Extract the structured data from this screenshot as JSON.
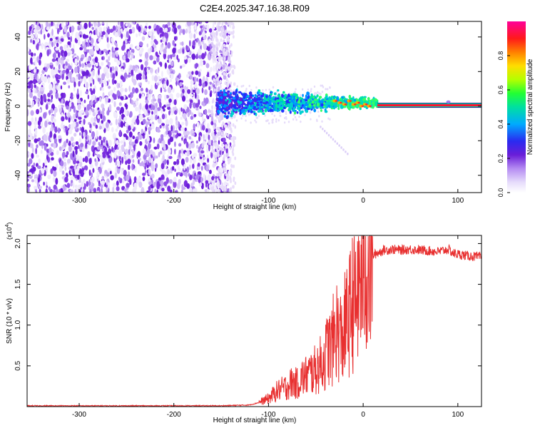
{
  "page_title": "C2E4.2025.347.16.38.R09",
  "colors": {
    "axis": "#000000",
    "snr_line": "#e83030",
    "background": "#ffffff",
    "carrier": "#f00000"
  },
  "chart_data": [
    {
      "id": "spectrogram",
      "type": "heatmap",
      "title": "C2E4.2025.347.16.38.R09",
      "xlabel": "Height of straight line (km)",
      "ylabel": "Frequency (Hz)",
      "xlim": [
        -355,
        125
      ],
      "ylim": [
        -50,
        49
      ],
      "xticks": [
        -300,
        -200,
        -100,
        0,
        100
      ],
      "xtick_labels": [
        "-300",
        "-200",
        "-100",
        "0",
        "100"
      ],
      "yticks": [
        -40,
        -20,
        0,
        20,
        40
      ],
      "ytick_labels": [
        "-40",
        "-20",
        "0",
        "20",
        "40"
      ],
      "grid": false,
      "regions": [
        {
          "name": "noise",
          "x_range": [
            -355,
            -140
          ],
          "description_level": 0.2
        },
        {
          "name": "signal-scatter",
          "x_range": [
            -155,
            15
          ],
          "center_freq": 2,
          "spread_freq": 6
        },
        {
          "name": "carrier-line",
          "x_range": [
            15,
            125
          ],
          "center_freq": 0.5
        }
      ],
      "colorbar": {
        "label": "Normalized spectral amplitude",
        "range": [
          0.0,
          1.0
        ],
        "ticks": [
          0.0,
          0.2,
          0.4,
          0.6,
          0.8
        ],
        "tick_labels": [
          "0.0",
          "0.2",
          "0.4",
          "0.6",
          "0.8"
        ],
        "colormap": [
          "#ffffff",
          "#d8c8f8",
          "#8a2be2",
          "#3030ff",
          "#00c8ff",
          "#00ff66",
          "#aaff00",
          "#ffcc00",
          "#ff6600",
          "#ff0033",
          "#ff00aa"
        ]
      }
    },
    {
      "id": "snr",
      "type": "line",
      "xlabel": "Height of straight line (km)",
      "ylabel": "SNR (10 * v/v)",
      "y_scale_label": "(x10",
      "y_scale_exp": "4",
      "y_scale_close": ")",
      "xlim": [
        -355,
        125
      ],
      "ylim": [
        0,
        2.1
      ],
      "xticks": [
        -300,
        -200,
        -100,
        0,
        100
      ],
      "xtick_labels": [
        "-300",
        "-200",
        "-100",
        "0",
        "100"
      ],
      "yticks": [
        0.5,
        1.0,
        1.5,
        2.0
      ],
      "ytick_labels": [
        "0.5",
        "1.0",
        "1.5",
        "2.0"
      ],
      "series": [
        {
          "name": "SNR",
          "color": "#e83030",
          "x": [
            -355,
            -300,
            -250,
            -200,
            -150,
            -120,
            -110,
            -100,
            -95,
            -90,
            -85,
            -80,
            -75,
            -70,
            -65,
            -60,
            -55,
            -50,
            -45,
            -40,
            -37,
            -34,
            -31,
            -28,
            -25,
            -22,
            -19,
            -16,
            -14,
            -12,
            -10,
            -8,
            -6,
            -4,
            -2,
            0,
            3,
            6,
            10,
            14,
            18,
            22,
            26,
            30,
            40,
            50,
            60,
            70,
            80,
            90,
            95,
            100,
            110,
            125
          ],
          "y": [
            0.01,
            0.01,
            0.01,
            0.01,
            0.01,
            0.02,
            0.05,
            0.1,
            0.15,
            0.2,
            0.22,
            0.25,
            0.3,
            0.28,
            0.35,
            0.38,
            0.42,
            0.45,
            0.52,
            0.6,
            0.75,
            0.7,
            0.85,
            0.95,
            0.9,
            0.8,
            1.0,
            1.05,
            1.15,
            1.25,
            1.35,
            1.2,
            1.45,
            1.5,
            1.6,
            1.7,
            1.75,
            1.8,
            1.85,
            1.88,
            1.9,
            1.92,
            1.92,
            1.93,
            1.92,
            1.93,
            1.92,
            1.91,
            1.9,
            1.93,
            1.88,
            1.87,
            1.85,
            1.83
          ]
        }
      ]
    }
  ]
}
